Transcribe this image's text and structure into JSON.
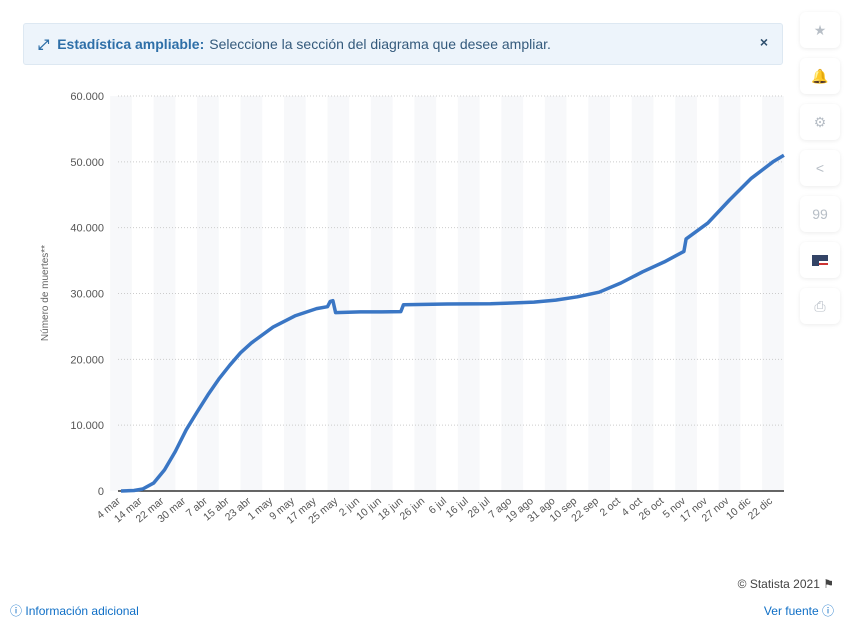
{
  "banner": {
    "icon": "expand-icon",
    "title": "Estadística ampliable:",
    "text": "Seleccione la sección del diagrama que desee ampliar.",
    "close": "×"
  },
  "sidebar": [
    {
      "icon": "star-icon",
      "glyph": "★"
    },
    {
      "icon": "bell-icon",
      "glyph": "🔔"
    },
    {
      "icon": "gear-icon",
      "glyph": "⚙"
    },
    {
      "icon": "share-icon",
      "glyph": "<"
    },
    {
      "icon": "quote-icon",
      "glyph": "99"
    },
    {
      "icon": "flag-us-icon",
      "glyph": ""
    },
    {
      "icon": "print-icon",
      "glyph": "⎙"
    }
  ],
  "footer": {
    "copyright": "© Statista 2021",
    "info": "Información adicional",
    "source": "Ver fuente"
  },
  "colors": {
    "line": "#3a76c4",
    "accent": "#0f6fc6"
  },
  "chart_data": {
    "type": "line",
    "ylabel": "Número de muertes**",
    "ylim": [
      0,
      60000
    ],
    "yticks": [
      "0",
      "10.000",
      "20.000",
      "30.000",
      "40.000",
      "50.000",
      "60.000"
    ],
    "ytick_values": [
      0,
      10000,
      20000,
      30000,
      40000,
      50000,
      60000
    ],
    "grid": true,
    "xticks": [
      "4 mar",
      "14 mar",
      "22 mar",
      "30 mar",
      "7 abr",
      "15 abr",
      "23 abr",
      "1 may",
      "9 may",
      "17 may",
      "25 may",
      "2 jun",
      "10 jun",
      "18 jun",
      "26 jun",
      "6 jul",
      "16 jul",
      "28 jul",
      "7 ago",
      "19 ago",
      "31 ago",
      "10 sep",
      "22 sep",
      "2 oct",
      "4 oct",
      "26 oct",
      "5 nov",
      "17 nov",
      "27 nov",
      "10 dic",
      "22 dic"
    ],
    "points": [
      [
        "4 mar",
        0
      ],
      [
        "10 mar",
        80
      ],
      [
        "14 mar",
        300
      ],
      [
        "18 mar",
        1200
      ],
      [
        "22 mar",
        3200
      ],
      [
        "26 mar",
        6000
      ],
      [
        "30 mar",
        9300
      ],
      [
        "3 abr",
        12000
      ],
      [
        "7 abr",
        14600
      ],
      [
        "11 abr",
        17000
      ],
      [
        "15 abr",
        19100
      ],
      [
        "19 abr",
        21000
      ],
      [
        "23 abr",
        22500
      ],
      [
        "1 may",
        24900
      ],
      [
        "9 may",
        26600
      ],
      [
        "17 may",
        27700
      ],
      [
        "21 may",
        28000
      ],
      [
        "22 may",
        28800
      ],
      [
        "23 may",
        28900
      ],
      [
        "24 may",
        27100
      ],
      [
        "2 jun",
        27200
      ],
      [
        "10 jun",
        27200
      ],
      [
        "17 jun",
        27250
      ],
      [
        "18 jun",
        28300
      ],
      [
        "26 jun",
        28350
      ],
      [
        "6 jul",
        28400
      ],
      [
        "16 jul",
        28420
      ],
      [
        "28 jul",
        28450
      ],
      [
        "7 ago",
        28550
      ],
      [
        "19 ago",
        28700
      ],
      [
        "31 ago",
        29000
      ],
      [
        "10 sep",
        29500
      ],
      [
        "22 sep",
        30200
      ],
      [
        "2 oct",
        31600
      ],
      [
        "4 oct",
        33300
      ],
      [
        "26 oct",
        34800
      ],
      [
        "4 nov",
        36400
      ],
      [
        "5 nov",
        38300
      ],
      [
        "17 nov",
        40700
      ],
      [
        "27 nov",
        44200
      ],
      [
        "10 dic",
        47500
      ],
      [
        "22 dic",
        50000
      ],
      [
        "28 dic",
        51000
      ]
    ]
  }
}
